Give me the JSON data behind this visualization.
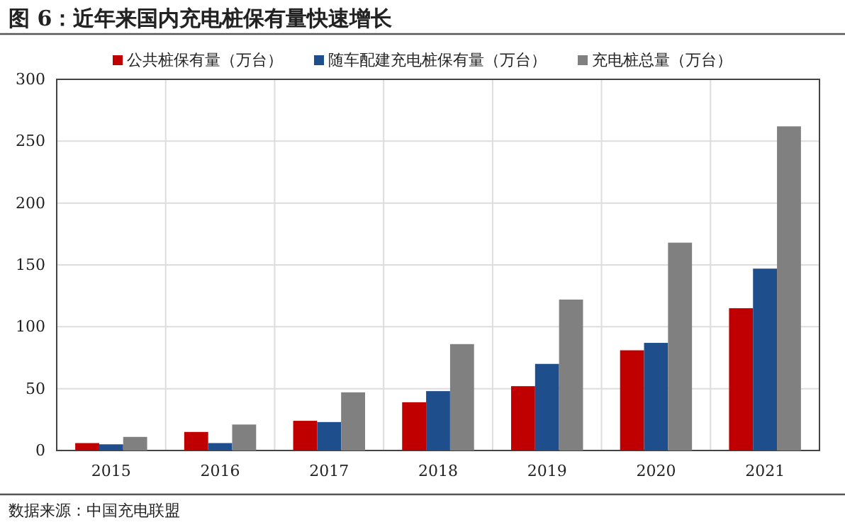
{
  "chart_data": {
    "type": "bar",
    "title": "图 6：近年来国内充电桩保有量快速增长",
    "categories": [
      "2015",
      "2016",
      "2017",
      "2018",
      "2019",
      "2020",
      "2021"
    ],
    "series": [
      {
        "name": "公共桩保有量（万台）",
        "color": "#c00000",
        "values": [
          6,
          15,
          24,
          39,
          52,
          81,
          115
        ]
      },
      {
        "name": "随车配建充电桩保有量（万台）",
        "color": "#1f4e8c",
        "values": [
          5,
          6,
          23,
          48,
          70,
          87,
          147
        ]
      },
      {
        "name": "充电桩总量（万台）",
        "color": "#808080",
        "values": [
          11,
          21,
          47,
          86,
          122,
          168,
          262
        ]
      }
    ],
    "ylim": [
      0,
      300
    ],
    "yticks": [
      0,
      50,
      100,
      150,
      200,
      250,
      300
    ],
    "grid": true,
    "legend": "top",
    "annotations": [
      "数据来源：中国充电联盟"
    ]
  }
}
